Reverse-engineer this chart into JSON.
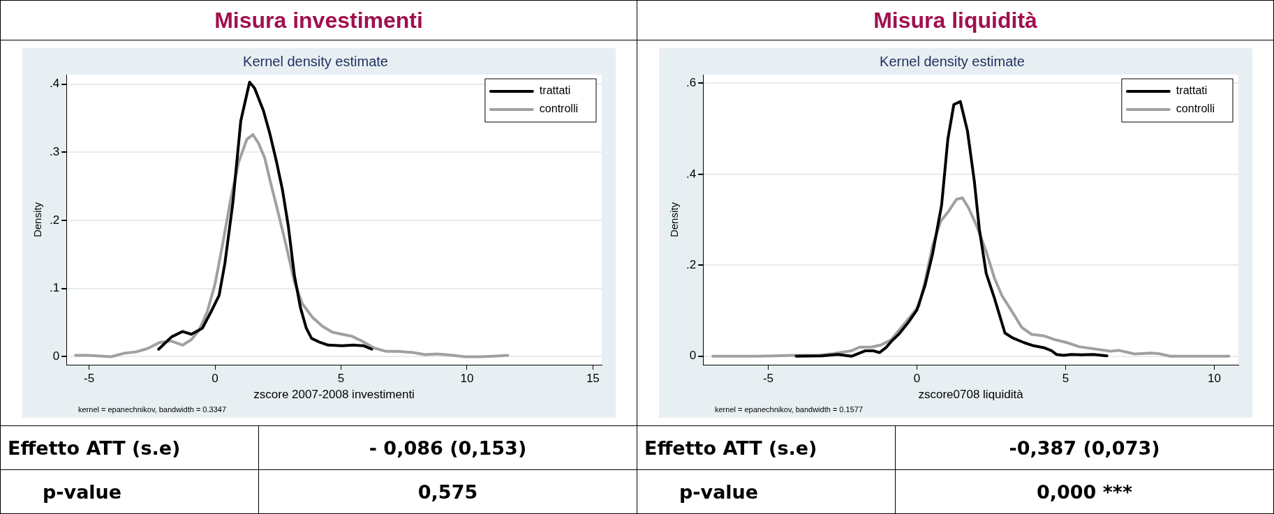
{
  "chart_data": [
    {
      "type": "line",
      "title": "Misura investimenti",
      "subtitle": "Kernel density estimate",
      "xlabel": "zscore 2007-2008 investimenti",
      "ylabel": "Density",
      "xlim": [
        -5.9,
        15.35
      ],
      "xticks": [
        -5,
        0,
        5,
        10,
        15
      ],
      "ylim": [
        -0.012,
        0.414
      ],
      "yticks": [
        0,
        {
          "value": 0.1,
          "label": ".1"
        },
        {
          "value": 0.2,
          "label": ".2"
        },
        {
          "value": 0.3,
          "label": ".3"
        },
        {
          "value": 0.4,
          "label": ".4"
        }
      ],
      "grid": "y",
      "legend": "top right",
      "marker": "none",
      "line_style": "solid",
      "series": [
        {
          "name": "trattati",
          "color": "#000000",
          "x": [
            -2.24,
            -1.73,
            -1.29,
            -0.94,
            -0.5,
            -0.16,
            0.16,
            0.39,
            0.71,
            1.02,
            1.37,
            1.57,
            1.92,
            2.17,
            2.44,
            2.68,
            2.91,
            3.15,
            3.39,
            3.62,
            3.83,
            4.17,
            4.49,
            5.04,
            5.51,
            5.91,
            6.22
          ],
          "values": [
            0.011,
            0.029,
            0.037,
            0.033,
            0.042,
            0.066,
            0.09,
            0.137,
            0.227,
            0.346,
            0.403,
            0.394,
            0.361,
            0.328,
            0.286,
            0.244,
            0.191,
            0.119,
            0.072,
            0.042,
            0.027,
            0.021,
            0.017,
            0.016,
            0.017,
            0.016,
            0.011
          ]
        },
        {
          "name": "controlli",
          "color": "#a0a0a0",
          "x": [
            -5.54,
            -5.04,
            -4.57,
            -4.13,
            -3.62,
            -3.15,
            -2.68,
            -2.2,
            -1.73,
            -1.29,
            -0.94,
            -0.63,
            -0.31,
            0,
            0.31,
            0.63,
            0.94,
            1.26,
            1.5,
            1.73,
            1.97,
            2.2,
            2.44,
            2.68,
            2.91,
            3.15,
            3.46,
            3.86,
            4.25,
            4.65,
            5.04,
            5.43,
            5.83,
            6.3,
            6.77,
            7.24,
            7.87,
            8.35,
            8.82,
            9.45,
            9.92,
            10.55,
            11.18,
            11.62
          ],
          "values": [
            0.002,
            0.002,
            0.001,
            0,
            0.005,
            0.007,
            0.012,
            0.021,
            0.023,
            0.017,
            0.025,
            0.039,
            0.066,
            0.107,
            0.167,
            0.233,
            0.286,
            0.319,
            0.326,
            0.313,
            0.292,
            0.256,
            0.221,
            0.185,
            0.149,
            0.11,
            0.078,
            0.058,
            0.045,
            0.036,
            0.033,
            0.03,
            0.023,
            0.013,
            0.008,
            0.008,
            0.006,
            0.003,
            0.004,
            0.002,
            0,
            0,
            0.001,
            0.002
          ]
        }
      ],
      "annotations": [
        "kernel = epanechnikov, bandwidth = 0.3347",
        "Effetto ATT (s.e)",
        "- 0,086 (0,153)",
        "p-value",
        "0,575"
      ]
    },
    {
      "type": "line",
      "title": "Misura liquidità",
      "subtitle": "Kernel density estimate",
      "xlabel": "zscore0708 liquidità",
      "ylabel": "Density",
      "xlim": [
        -7.19,
        10.81
      ],
      "xticks": [
        -5,
        0,
        5,
        10
      ],
      "ylim": [
        -0.019,
        0.619
      ],
      "yticks": [
        0,
        {
          "value": 0.2,
          "label": ".2"
        },
        {
          "value": 0.4,
          "label": ".4"
        },
        {
          "value": 0.6,
          "label": ".6"
        }
      ],
      "grid": "y",
      "legend": "top right",
      "marker": "none",
      "line_style": "solid",
      "series": [
        {
          "name": "trattati",
          "color": "#000000",
          "x": [
            -4.06,
            -3.2,
            -2.66,
            -2.2,
            -1.73,
            -1.46,
            -1.26,
            -1.04,
            -0.87,
            -0.6,
            -0.27,
            0,
            0.27,
            0.53,
            0.83,
            1.04,
            1.24,
            1.46,
            1.7,
            1.93,
            2.1,
            2.33,
            2.6,
            2.96,
            3.2,
            3.6,
            3.93,
            4.26,
            4.53,
            4.69,
            4.93,
            5.19,
            5.53,
            5.93,
            6.39
          ],
          "values": [
            0,
            0.001,
            0.004,
            0,
            0.012,
            0.012,
            0.008,
            0.019,
            0.032,
            0.049,
            0.076,
            0.102,
            0.155,
            0.226,
            0.332,
            0.477,
            0.553,
            0.56,
            0.495,
            0.385,
            0.279,
            0.182,
            0.129,
            0.051,
            0.041,
            0.03,
            0.023,
            0.019,
            0.012,
            0.004,
            0.002,
            0.004,
            0.003,
            0.004,
            0.001
          ]
        },
        {
          "name": "controlli",
          "color": "#a0a0a0",
          "x": [
            -6.86,
            -5.99,
            -5.45,
            -4.79,
            -4.12,
            -3.33,
            -2.8,
            -2.2,
            -1.93,
            -1.53,
            -1.2,
            -0.87,
            -0.53,
            -0.2,
            0.07,
            0.27,
            0.53,
            0.8,
            1.07,
            1.33,
            1.53,
            1.73,
            2,
            2.33,
            2.6,
            2.86,
            3.2,
            3.53,
            3.86,
            4.26,
            4.66,
            5.05,
            5.45,
            5.99,
            6.52,
            6.79,
            7.32,
            7.85,
            8.12,
            8.51,
            9.45,
            10.49
          ],
          "values": [
            0,
            0,
            0,
            0.001,
            0.002,
            0.002,
            0.006,
            0.012,
            0.02,
            0.02,
            0.025,
            0.036,
            0.063,
            0.089,
            0.111,
            0.164,
            0.244,
            0.297,
            0.319,
            0.345,
            0.348,
            0.327,
            0.288,
            0.23,
            0.173,
            0.133,
            0.098,
            0.063,
            0.048,
            0.045,
            0.036,
            0.03,
            0.021,
            0.016,
            0.011,
            0.013,
            0.005,
            0.007,
            0.006,
            0,
            0,
            0
          ]
        }
      ],
      "annotations": [
        "kernel = epanechnikov, bandwidth = 0.1577",
        "Effetto ATT (s.e)",
        "-0,387 (0,073)",
        "p-value",
        "0,000 ***"
      ]
    }
  ]
}
